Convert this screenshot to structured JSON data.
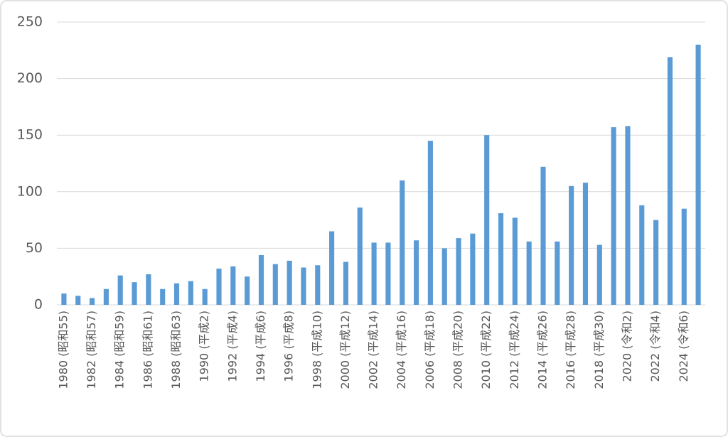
{
  "chart_data": {
    "type": "bar",
    "categories": [
      "1980 (昭和55)",
      null,
      "1982 (昭和57)",
      null,
      "1984 (昭和59)",
      null,
      "1986 (昭和61)",
      null,
      "1988 (昭和63)",
      null,
      "1990 (平成2)",
      null,
      "1992 (平成4)",
      null,
      "1994 (平成6)",
      null,
      "1996 (平成8)",
      null,
      "1998 (平成10)",
      null,
      "2000 (平成12)",
      null,
      "2002 (平成14)",
      null,
      "2004 (平成16)",
      null,
      "2006 (平成18)",
      null,
      "2008 (平成20)",
      null,
      "2010 (平成22)",
      null,
      "2012 (平成24)",
      null,
      "2014 (平成26)",
      null,
      "2016 (平成28)",
      null,
      "2018 (平成30)",
      null,
      "2020 (令和2)",
      null,
      "2022 (令和4)",
      null,
      "2024 (令和6)",
      null
    ],
    "values": [
      10,
      8,
      6,
      14,
      26,
      20,
      27,
      14,
      19,
      21,
      14,
      32,
      34,
      25,
      44,
      36,
      39,
      33,
      35,
      65,
      38,
      86,
      55,
      55,
      110,
      57,
      145,
      50,
      59,
      63,
      150,
      81,
      77,
      56,
      122,
      56,
      105,
      108,
      53,
      157,
      158,
      88,
      75,
      219,
      85,
      230
    ],
    "color": "#5b9bd5",
    "ylim": [
      0,
      250
    ],
    "yticks": [
      0,
      50,
      100,
      150,
      200,
      250
    ],
    "grid": true
  }
}
